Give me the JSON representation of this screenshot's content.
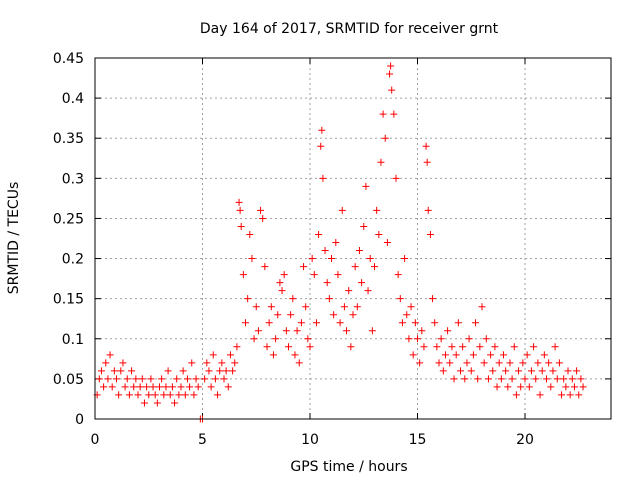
{
  "chart_data": {
    "type": "scatter",
    "title": "Day 164 of 2017, SRMTID for receiver grnt",
    "xlabel": "GPS time / hours",
    "ylabel": "SRMTID / TECUs",
    "xlim": [
      0,
      24
    ],
    "ylim": [
      0,
      0.45
    ],
    "x_ticks": [
      0,
      5,
      10,
      15,
      20
    ],
    "x_tick_labels": [
      "0",
      "5",
      "10",
      "15",
      "20"
    ],
    "y_ticks": [
      0,
      0.05,
      0.1,
      0.15,
      0.2,
      0.25,
      0.3,
      0.35,
      0.4,
      0.45
    ],
    "y_tick_labels": [
      "0",
      "0.05",
      "0.1",
      "0.15",
      "0.2",
      "0.25",
      "0.3",
      "0.35",
      "0.4",
      "0.45"
    ],
    "grid": true,
    "marker": "+",
    "color": "#ff0000",
    "series": [
      {
        "name": "SRMTID",
        "points": [
          [
            0.1,
            0.03
          ],
          [
            0.2,
            0.05
          ],
          [
            0.3,
            0.06
          ],
          [
            0.4,
            0.04
          ],
          [
            0.5,
            0.07
          ],
          [
            0.6,
            0.05
          ],
          [
            0.7,
            0.08
          ],
          [
            0.8,
            0.04
          ],
          [
            0.9,
            0.06
          ],
          [
            1.0,
            0.05
          ],
          [
            1.1,
            0.03
          ],
          [
            1.2,
            0.06
          ],
          [
            1.3,
            0.07
          ],
          [
            1.4,
            0.04
          ],
          [
            1.5,
            0.05
          ],
          [
            1.6,
            0.03
          ],
          [
            1.7,
            0.06
          ],
          [
            1.8,
            0.04
          ],
          [
            1.9,
            0.05
          ],
          [
            2.0,
            0.03
          ],
          [
            2.1,
            0.04
          ],
          [
            2.2,
            0.05
          ],
          [
            2.3,
            0.02
          ],
          [
            2.4,
            0.04
          ],
          [
            2.5,
            0.03
          ],
          [
            2.6,
            0.05
          ],
          [
            2.7,
            0.04
          ],
          [
            2.8,
            0.03
          ],
          [
            2.9,
            0.02
          ],
          [
            3.0,
            0.04
          ],
          [
            3.1,
            0.05
          ],
          [
            3.2,
            0.03
          ],
          [
            3.3,
            0.04
          ],
          [
            3.4,
            0.06
          ],
          [
            3.5,
            0.03
          ],
          [
            3.6,
            0.04
          ],
          [
            3.7,
            0.02
          ],
          [
            3.8,
            0.05
          ],
          [
            3.9,
            0.03
          ],
          [
            4.0,
            0.04
          ],
          [
            4.1,
            0.06
          ],
          [
            4.2,
            0.03
          ],
          [
            4.3,
            0.05
          ],
          [
            4.4,
            0.04
          ],
          [
            4.5,
            0.07
          ],
          [
            4.6,
            0.03
          ],
          [
            4.7,
            0.05
          ],
          [
            4.8,
            0.04
          ],
          [
            4.9,
            0.0
          ],
          [
            5.0,
            0.0
          ],
          [
            5.1,
            0.05
          ],
          [
            5.2,
            0.07
          ],
          [
            5.3,
            0.06
          ],
          [
            5.4,
            0.04
          ],
          [
            5.5,
            0.08
          ],
          [
            5.6,
            0.05
          ],
          [
            5.7,
            0.03
          ],
          [
            5.8,
            0.06
          ],
          [
            5.9,
            0.07
          ],
          [
            6.0,
            0.05
          ],
          [
            6.1,
            0.06
          ],
          [
            6.2,
            0.04
          ],
          [
            6.3,
            0.08
          ],
          [
            6.4,
            0.06
          ],
          [
            6.5,
            0.07
          ],
          [
            6.6,
            0.09
          ],
          [
            6.7,
            0.27
          ],
          [
            6.75,
            0.26
          ],
          [
            6.8,
            0.24
          ],
          [
            6.9,
            0.18
          ],
          [
            7.0,
            0.12
          ],
          [
            7.1,
            0.15
          ],
          [
            7.2,
            0.23
          ],
          [
            7.3,
            0.2
          ],
          [
            7.4,
            0.1
          ],
          [
            7.5,
            0.14
          ],
          [
            7.6,
            0.11
          ],
          [
            7.7,
            0.26
          ],
          [
            7.8,
            0.25
          ],
          [
            7.9,
            0.19
          ],
          [
            8.0,
            0.09
          ],
          [
            8.1,
            0.12
          ],
          [
            8.2,
            0.14
          ],
          [
            8.3,
            0.08
          ],
          [
            8.4,
            0.1
          ],
          [
            8.5,
            0.13
          ],
          [
            8.6,
            0.17
          ],
          [
            8.7,
            0.16
          ],
          [
            8.8,
            0.18
          ],
          [
            8.9,
            0.11
          ],
          [
            9.0,
            0.09
          ],
          [
            9.1,
            0.13
          ],
          [
            9.2,
            0.15
          ],
          [
            9.3,
            0.08
          ],
          [
            9.4,
            0.11
          ],
          [
            9.5,
            0.07
          ],
          [
            9.6,
            0.12
          ],
          [
            9.7,
            0.19
          ],
          [
            9.8,
            0.14
          ],
          [
            9.9,
            0.1
          ],
          [
            10.0,
            0.09
          ],
          [
            10.1,
            0.2
          ],
          [
            10.2,
            0.18
          ],
          [
            10.3,
            0.12
          ],
          [
            10.4,
            0.23
          ],
          [
            10.5,
            0.34
          ],
          [
            10.55,
            0.36
          ],
          [
            10.6,
            0.3
          ],
          [
            10.7,
            0.21
          ],
          [
            10.8,
            0.17
          ],
          [
            10.9,
            0.15
          ],
          [
            11.0,
            0.2
          ],
          [
            11.1,
            0.13
          ],
          [
            11.2,
            0.22
          ],
          [
            11.3,
            0.18
          ],
          [
            11.4,
            0.12
          ],
          [
            11.5,
            0.26
          ],
          [
            11.6,
            0.14
          ],
          [
            11.7,
            0.11
          ],
          [
            11.8,
            0.16
          ],
          [
            11.9,
            0.09
          ],
          [
            12.0,
            0.13
          ],
          [
            12.1,
            0.19
          ],
          [
            12.2,
            0.14
          ],
          [
            12.3,
            0.21
          ],
          [
            12.4,
            0.17
          ],
          [
            12.5,
            0.24
          ],
          [
            12.6,
            0.29
          ],
          [
            12.7,
            0.16
          ],
          [
            12.8,
            0.2
          ],
          [
            12.9,
            0.11
          ],
          [
            13.0,
            0.19
          ],
          [
            13.1,
            0.26
          ],
          [
            13.2,
            0.23
          ],
          [
            13.3,
            0.32
          ],
          [
            13.4,
            0.38
          ],
          [
            13.5,
            0.35
          ],
          [
            13.6,
            0.22
          ],
          [
            13.7,
            0.43
          ],
          [
            13.75,
            0.44
          ],
          [
            13.8,
            0.41
          ],
          [
            13.9,
            0.38
          ],
          [
            14.0,
            0.3
          ],
          [
            14.1,
            0.18
          ],
          [
            14.2,
            0.15
          ],
          [
            14.3,
            0.12
          ],
          [
            14.4,
            0.2
          ],
          [
            14.5,
            0.13
          ],
          [
            14.6,
            0.1
          ],
          [
            14.7,
            0.14
          ],
          [
            14.8,
            0.08
          ],
          [
            14.9,
            0.12
          ],
          [
            15.0,
            0.1
          ],
          [
            15.1,
            0.07
          ],
          [
            15.2,
            0.11
          ],
          [
            15.3,
            0.09
          ],
          [
            15.4,
            0.34
          ],
          [
            15.45,
            0.32
          ],
          [
            15.5,
            0.26
          ],
          [
            15.6,
            0.23
          ],
          [
            15.7,
            0.15
          ],
          [
            15.8,
            0.12
          ],
          [
            15.9,
            0.09
          ],
          [
            16.0,
            0.07
          ],
          [
            16.1,
            0.1
          ],
          [
            16.2,
            0.06
          ],
          [
            16.3,
            0.08
          ],
          [
            16.4,
            0.11
          ],
          [
            16.5,
            0.07
          ],
          [
            16.6,
            0.09
          ],
          [
            16.7,
            0.05
          ],
          [
            16.8,
            0.08
          ],
          [
            16.9,
            0.12
          ],
          [
            17.0,
            0.06
          ],
          [
            17.1,
            0.09
          ],
          [
            17.2,
            0.05
          ],
          [
            17.3,
            0.07
          ],
          [
            17.4,
            0.1
          ],
          [
            17.5,
            0.06
          ],
          [
            17.6,
            0.08
          ],
          [
            17.7,
            0.12
          ],
          [
            17.8,
            0.05
          ],
          [
            17.9,
            0.09
          ],
          [
            18.0,
            0.14
          ],
          [
            18.1,
            0.07
          ],
          [
            18.2,
            0.1
          ],
          [
            18.3,
            0.05
          ],
          [
            18.4,
            0.08
          ],
          [
            18.5,
            0.06
          ],
          [
            18.6,
            0.09
          ],
          [
            18.7,
            0.04
          ],
          [
            18.8,
            0.07
          ],
          [
            18.9,
            0.05
          ],
          [
            19.0,
            0.08
          ],
          [
            19.1,
            0.06
          ],
          [
            19.2,
            0.04
          ],
          [
            19.3,
            0.07
          ],
          [
            19.4,
            0.05
          ],
          [
            19.5,
            0.09
          ],
          [
            19.6,
            0.03
          ],
          [
            19.7,
            0.06
          ],
          [
            19.8,
            0.04
          ],
          [
            19.9,
            0.07
          ],
          [
            20.0,
            0.05
          ],
          [
            20.1,
            0.08
          ],
          [
            20.2,
            0.04
          ],
          [
            20.3,
            0.06
          ],
          [
            20.4,
            0.09
          ],
          [
            20.5,
            0.05
          ],
          [
            20.6,
            0.07
          ],
          [
            20.7,
            0.03
          ],
          [
            20.8,
            0.06
          ],
          [
            20.9,
            0.08
          ],
          [
            21.0,
            0.05
          ],
          [
            21.1,
            0.07
          ],
          [
            21.2,
            0.04
          ],
          [
            21.3,
            0.06
          ],
          [
            21.4,
            0.09
          ],
          [
            21.5,
            0.05
          ],
          [
            21.6,
            0.07
          ],
          [
            21.7,
            0.03
          ],
          [
            21.8,
            0.05
          ],
          [
            21.9,
            0.04
          ],
          [
            22.0,
            0.06
          ],
          [
            22.1,
            0.03
          ],
          [
            22.2,
            0.05
          ],
          [
            22.3,
            0.04
          ],
          [
            22.4,
            0.06
          ],
          [
            22.5,
            0.03
          ],
          [
            22.6,
            0.05
          ],
          [
            22.7,
            0.04
          ]
        ]
      }
    ]
  }
}
